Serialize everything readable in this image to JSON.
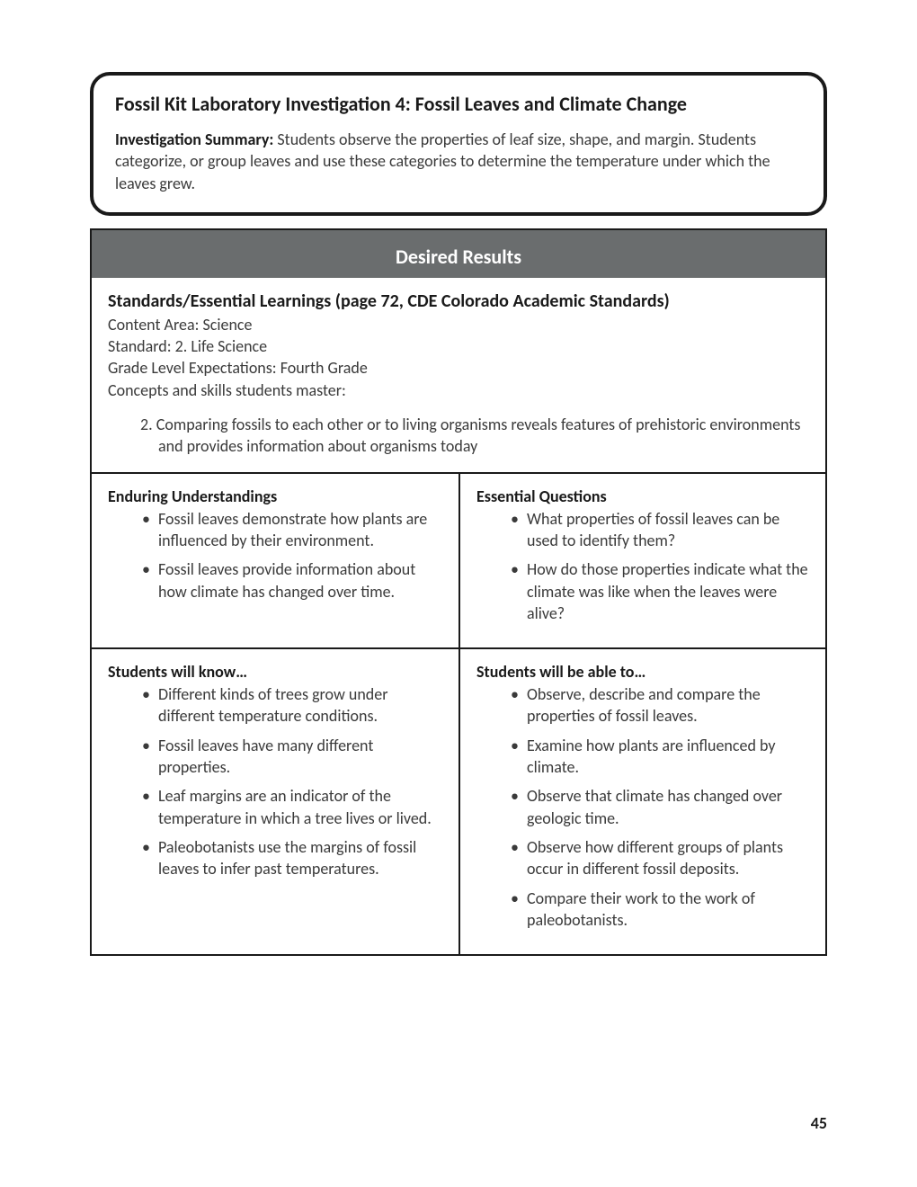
{
  "title": "Fossil Kit Laboratory Investigation 4: Fossil Leaves and Climate Change",
  "summary": {
    "lead": "Investigation Summary:",
    "text": " Students observe the properties of leaf size, shape, and margin. Students categorize, or group leaves and use these categories to determine the temperature under which the leaves grew."
  },
  "section_header": "Desired Results",
  "standards": {
    "heading": "Standards/Essential Learnings (page 72, CDE Colorado Academic Standards)",
    "lines": [
      "Content Area: Science",
      "Standard: 2. Life Science",
      "Grade Level Expectations: Fourth Grade",
      "Concepts and skills students master:"
    ],
    "item": "2. Comparing fossils to each other or to living organisms reveals features of prehistoric environments and provides information about organisms today"
  },
  "grid": {
    "r1c1": {
      "heading": "Enduring Understandings",
      "items": [
        "Fossil leaves demonstrate how plants are influenced by their environment.",
        "Fossil leaves provide information about how climate has changed over time."
      ]
    },
    "r1c2": {
      "heading": "Essential Questions",
      "items": [
        "What properties of fossil leaves can be used to identify them?",
        "How do those properties indicate what the climate was like when the leaves were alive?"
      ]
    },
    "r2c1": {
      "heading": "Students will know…",
      "items": [
        "Different kinds of trees grow under different temperature conditions.",
        "Fossil leaves have many different properties.",
        "Leaf margins are an indicator of the temperature in which a tree lives or lived.",
        "Paleobotanists use the margins of fossil leaves to infer past temperatures."
      ]
    },
    "r2c2": {
      "heading": "Students will be able to…",
      "items": [
        "Observe, describe and compare the properties of fossil leaves.",
        "Examine how plants are influenced by climate.",
        "Observe that climate has changed over geologic time.",
        "Observe how different groups of plants occur in different fossil deposits.",
        "Compare their work to the work of paleobotanists."
      ]
    }
  },
  "page_number": "45",
  "colors": {
    "header_bg": "#6a6d6e",
    "header_text": "#ffffff",
    "border": "#1a1a1a",
    "body_text": "#3a3a3a",
    "page_bg": "#ffffff"
  },
  "typography": {
    "title_fontsize": 22,
    "heading_fontsize": 20,
    "cell_heading_fontsize": 18,
    "body_fontsize": 18
  }
}
